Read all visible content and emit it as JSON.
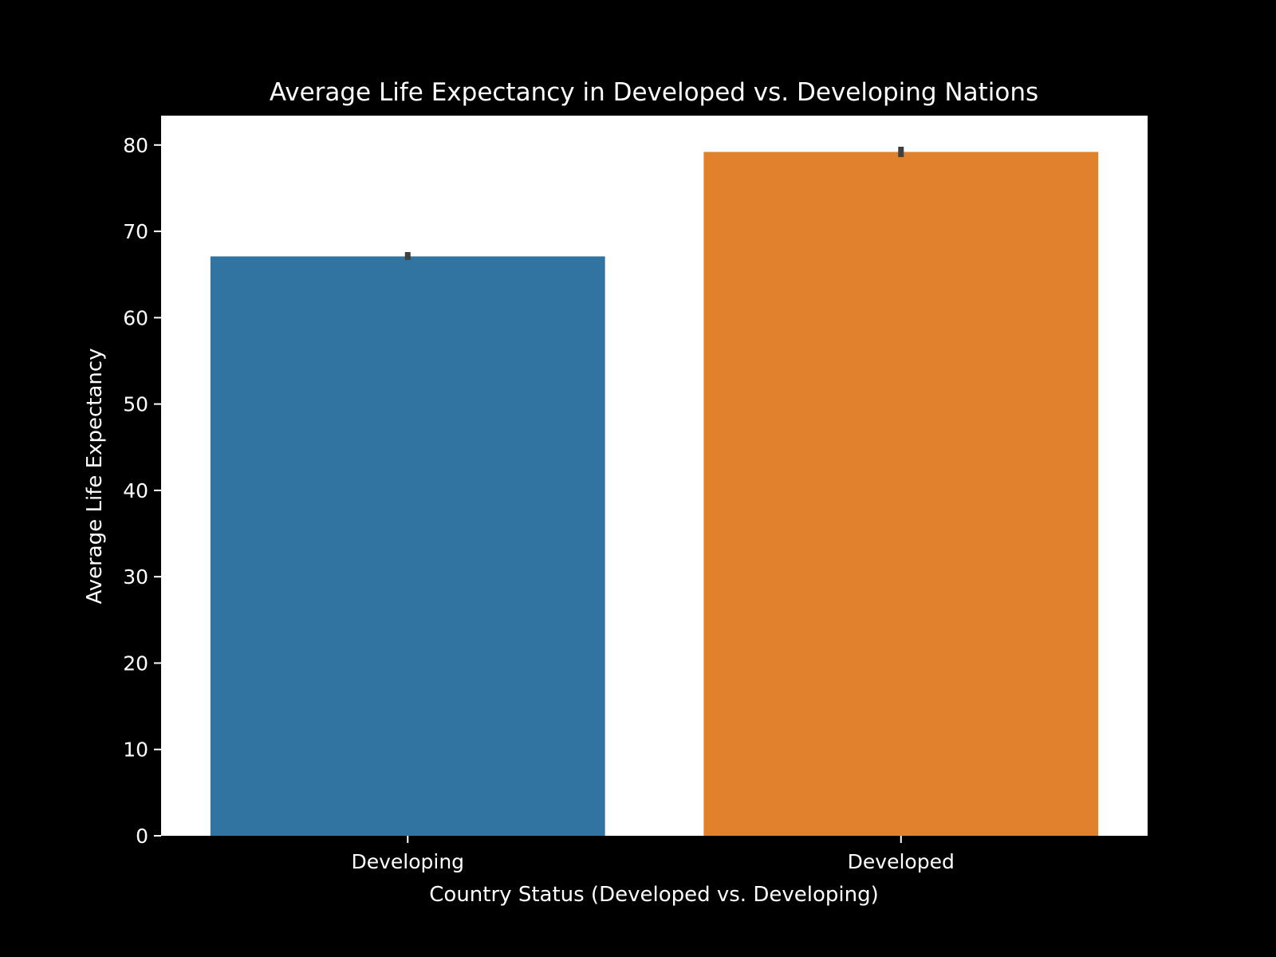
{
  "chart_data": {
    "type": "bar",
    "title": "Average Life Expectancy in Developed vs. Developing Nations",
    "xlabel": "Country Status (Developed vs. Developing)",
    "ylabel": "Average Life Expectancy",
    "categories": [
      "Developing",
      "Developed"
    ],
    "values": [
      67.1,
      79.2
    ],
    "error_bars": [
      {
        "low": 66.7,
        "high": 67.6
      },
      {
        "low": 78.6,
        "high": 79.8
      }
    ],
    "ylim": [
      0,
      83.4
    ],
    "yticks": [
      0,
      10,
      20,
      30,
      40,
      50,
      60,
      70,
      80
    ],
    "colors": [
      "#3274a1",
      "#e1812c"
    ],
    "error_bar_color": "#3f3f3f",
    "plot_background": "#ffffff",
    "figure_background": "#000000",
    "grid": false,
    "legend": "none"
  }
}
